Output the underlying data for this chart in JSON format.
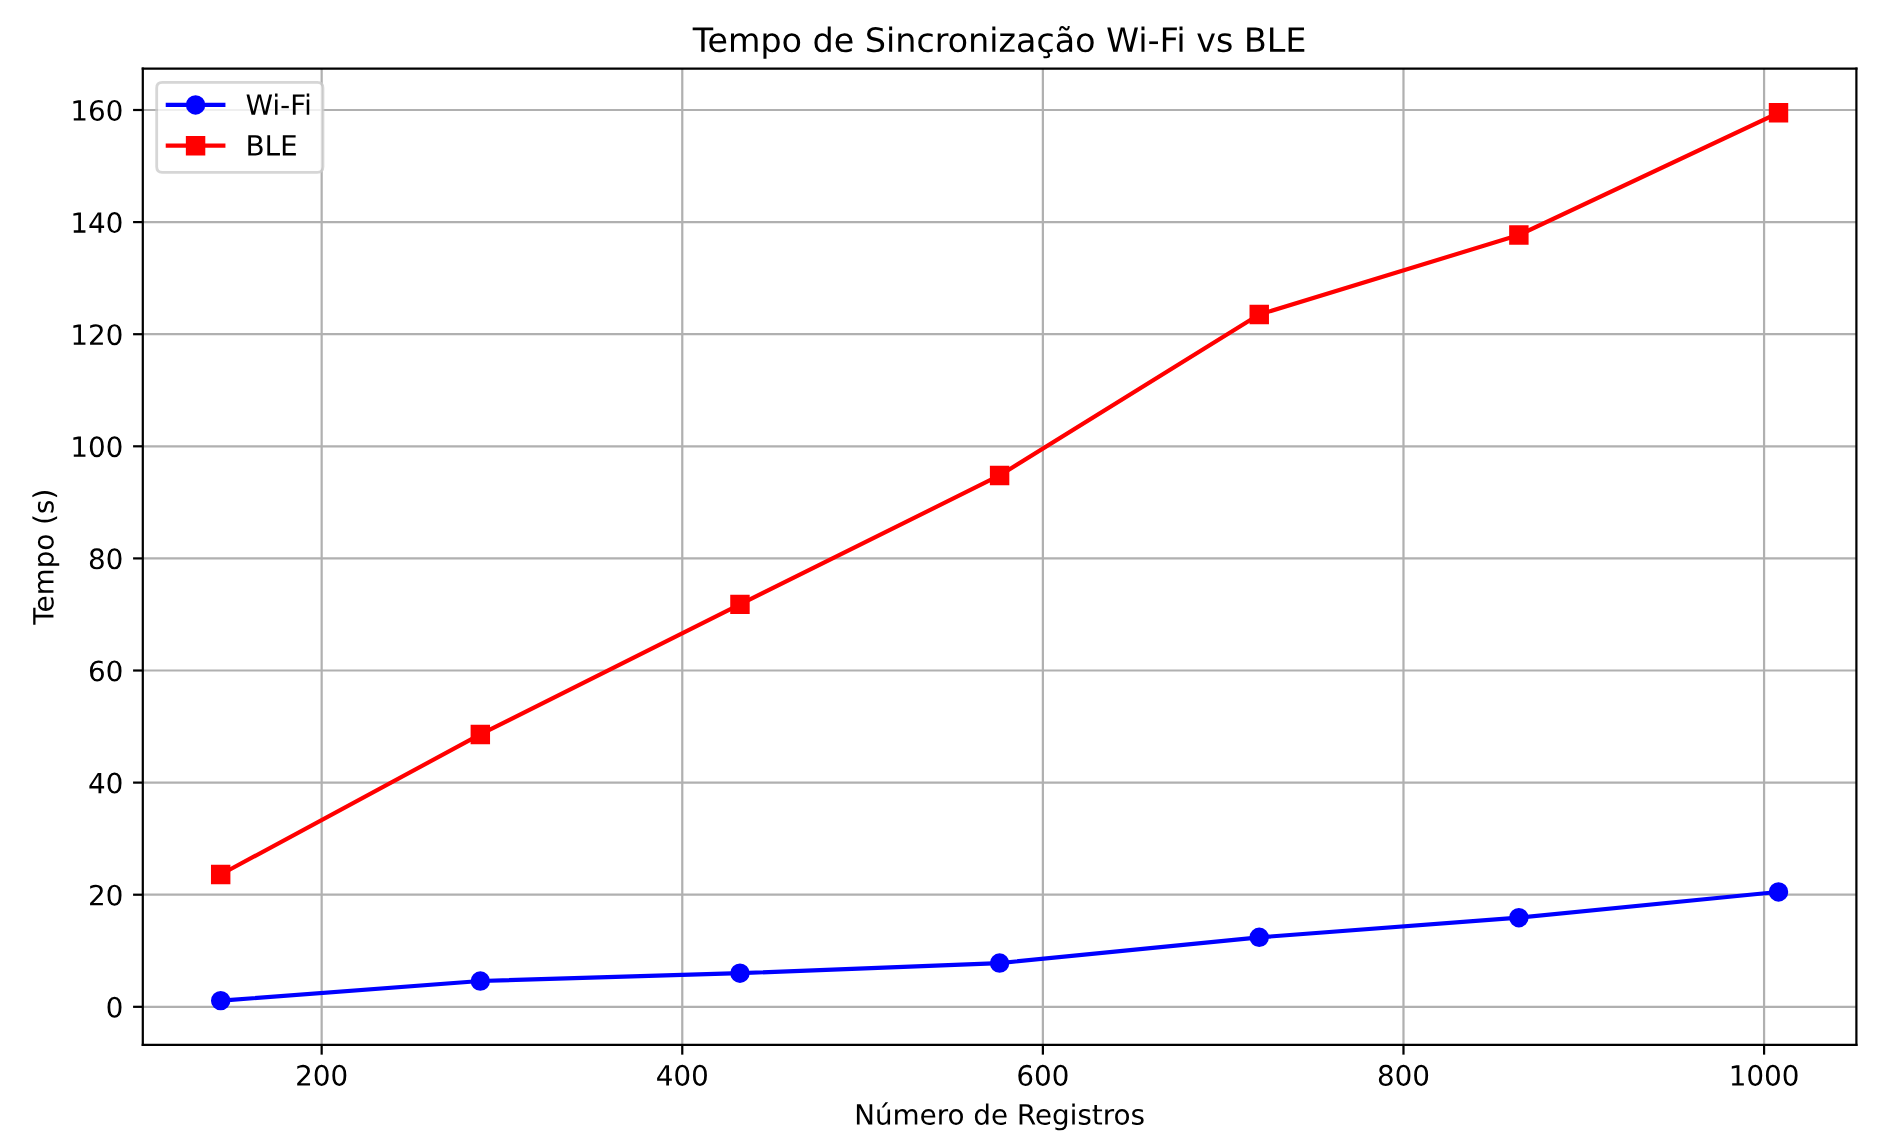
{
  "chart_data": {
    "type": "line",
    "title": "Tempo de Sincronização Wi-Fi vs BLE",
    "xlabel": "Número de Registros",
    "ylabel": "Tempo (s)",
    "x": [
      144,
      288,
      432,
      576,
      720,
      864,
      1008
    ],
    "series": [
      {
        "name": "Wi-Fi",
        "color": "#0000ff",
        "marker": "circle",
        "values": [
          1.1,
          4.6,
          6.0,
          7.8,
          12.4,
          15.9,
          20.5
        ]
      },
      {
        "name": "BLE",
        "color": "#ff0000",
        "marker": "square",
        "values": [
          23.6,
          48.6,
          71.8,
          94.8,
          123.5,
          137.7,
          159.5
        ]
      }
    ],
    "xlim": [
      100.8,
      1051.2
    ],
    "xticks": [
      200,
      400,
      600,
      800,
      1000
    ],
    "ylim": [
      -6.8,
      167.4
    ],
    "yticks": [
      0,
      20,
      40,
      60,
      80,
      100,
      120,
      140,
      160
    ],
    "grid": true,
    "legend": "top left",
    "line_style": "solid"
  }
}
